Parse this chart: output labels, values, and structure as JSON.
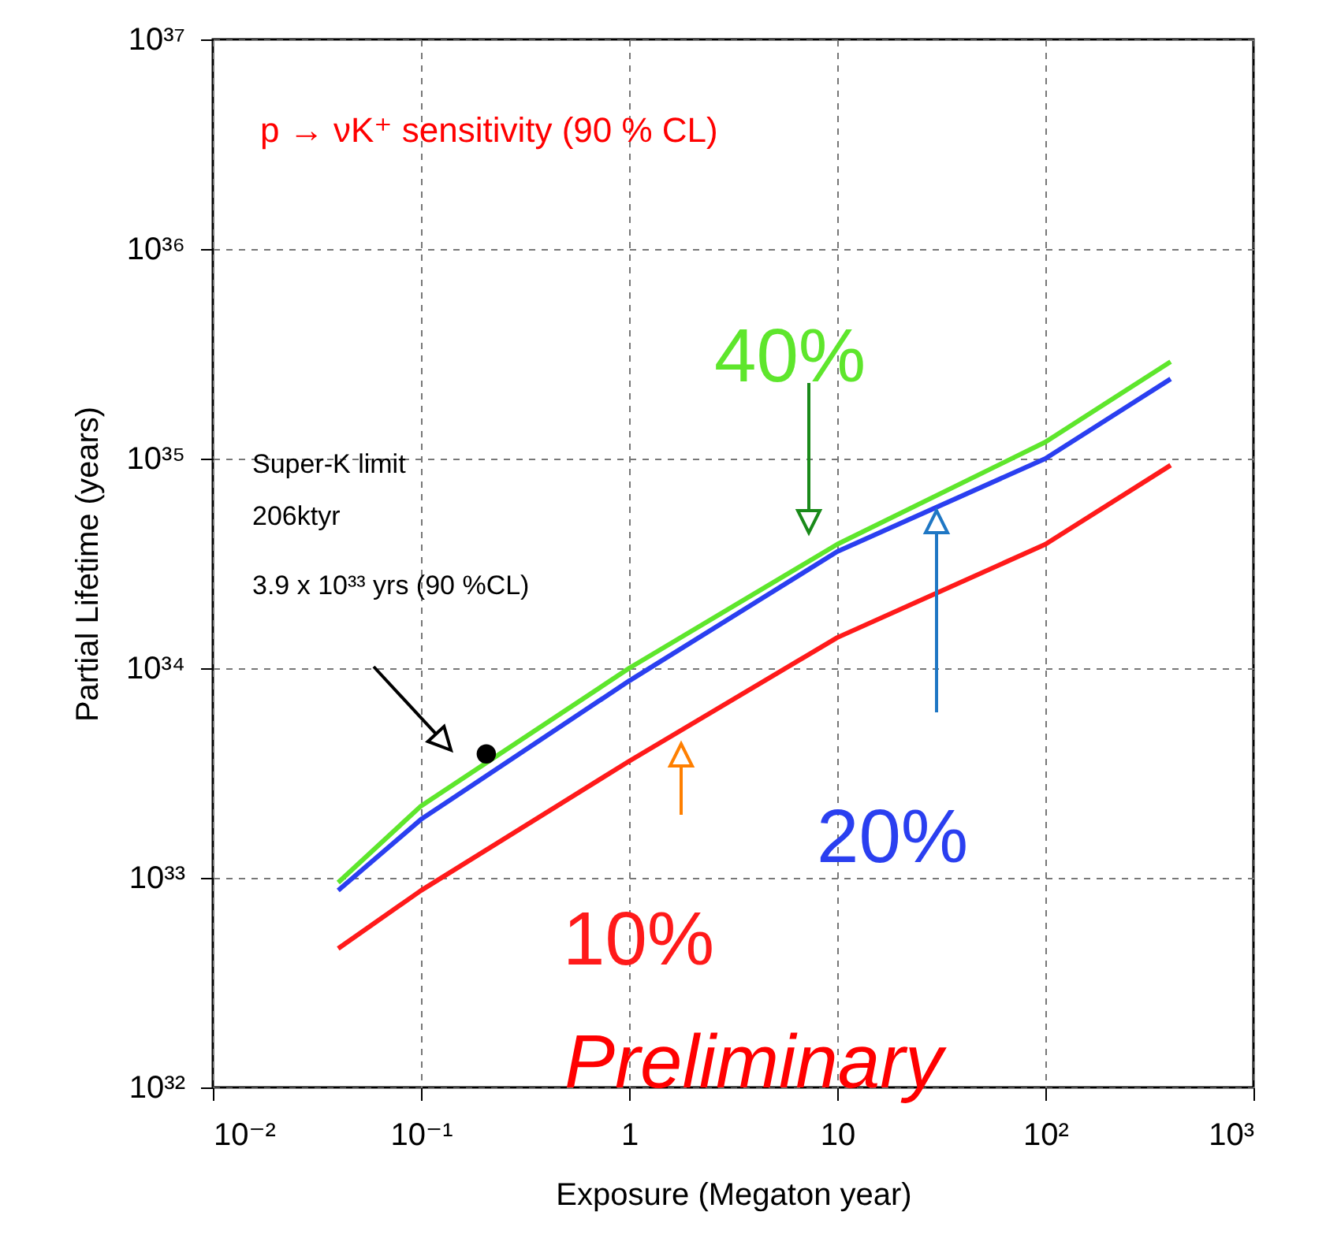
{
  "chart_data": {
    "type": "line",
    "title": "p → νK⁺ sensitivity (90 % CL)",
    "xlabel": "Exposure (Megaton year)",
    "ylabel": "Partial Lifetime (years)",
    "log": "xy",
    "grid": true,
    "xlim": [
      0.01,
      1000
    ],
    "ylim": [
      1e+32,
      1e+37
    ],
    "xticks": [
      {
        "value": 0.01,
        "label": "10⁻²"
      },
      {
        "value": 0.1,
        "label": "10⁻¹"
      },
      1,
      10,
      {
        "value": 100,
        "label": "10²"
      },
      {
        "value": 1000,
        "label": "10³"
      }
    ],
    "yticks": [
      {
        "value": 1e+32,
        "label": "10³²"
      },
      {
        "value": 1e+33,
        "label": "10³³"
      },
      {
        "value": 1e+34,
        "label": "10³⁴"
      },
      {
        "value": 1e+35,
        "label": "10³⁵"
      },
      {
        "value": 1e+36,
        "label": "10³⁶"
      },
      {
        "value": 1e+37,
        "label": "10³⁷"
      }
    ],
    "annotations": [
      "Super-K limit",
      "206ktyr",
      "3.9 x 10³³ yrs (90 %CL)",
      "Preliminary"
    ],
    "x": [
      0.04,
      0.1,
      1,
      10,
      100,
      400
    ],
    "series": [
      {
        "name": "40%",
        "color": "#5ee62c",
        "values": [
          9.5e+32,
          2.2e+33,
          1e+34,
          3.9e+34,
          1.2e+35,
          2.9e+35
        ]
      },
      {
        "name": "20%",
        "color": "#2a3ff0",
        "values": [
          8.7e+32,
          1.9e+33,
          8.7e+33,
          3.6e+34,
          1e+35,
          2.4e+35
        ]
      },
      {
        "name": "10%",
        "color": "#ff1a1a",
        "values": [
          4.6e+32,
          8.7e+32,
          3.6e+33,
          1.4e+34,
          3.9e+34,
          9.3e+34
        ]
      },
      {
        "type": "scatter",
        "x": [
          0.206
        ],
        "values": [
          3.9e+33
        ],
        "color": "#000000"
      }
    ]
  }
}
